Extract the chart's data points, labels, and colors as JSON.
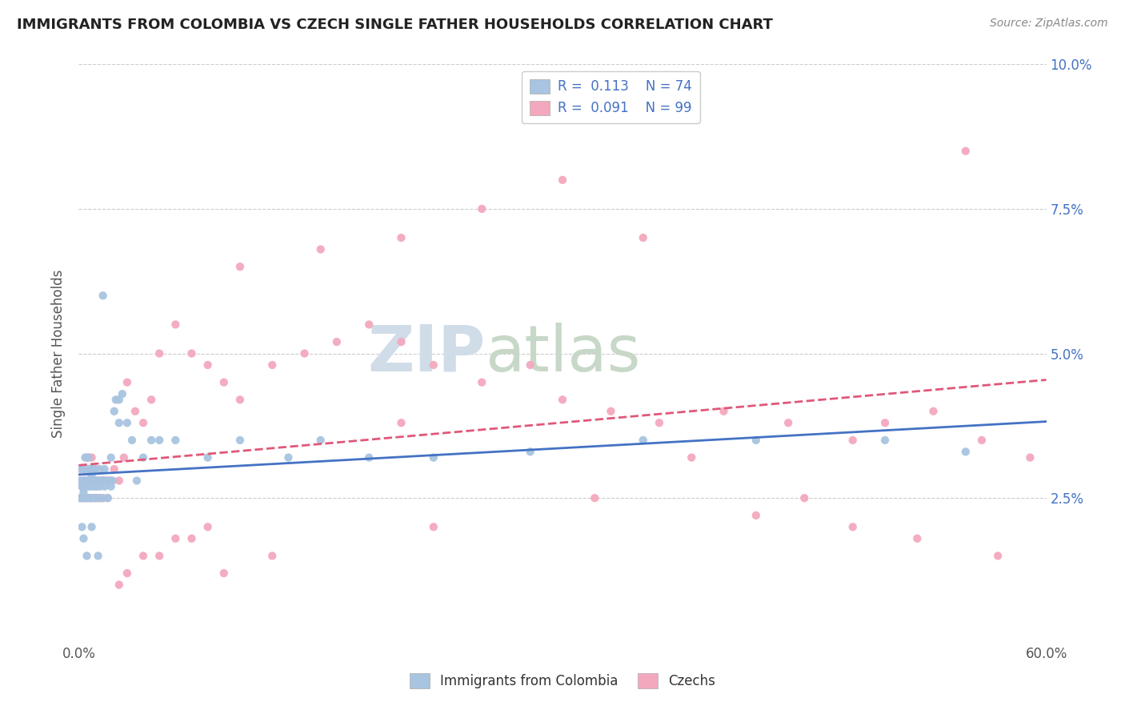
{
  "title": "IMMIGRANTS FROM COLOMBIA VS CZECH SINGLE FATHER HOUSEHOLDS CORRELATION CHART",
  "source": "Source: ZipAtlas.com",
  "ylabel": "Single Father Households",
  "xlim": [
    0.0,
    0.6
  ],
  "ylim": [
    0.0,
    0.1
  ],
  "colombia_color": "#a8c4e0",
  "czech_color": "#f4a8be",
  "colombia_line_color": "#4472c4",
  "czech_line_color": "#e05878",
  "legend_R_colombia": "0.113",
  "legend_N_colombia": "74",
  "legend_R_czech": "0.091",
  "legend_N_czech": "99",
  "watermark_zip": "ZIP",
  "watermark_atlas": "atlas",
  "colombia_x": [
    0.001,
    0.001,
    0.002,
    0.002,
    0.002,
    0.003,
    0.003,
    0.003,
    0.004,
    0.004,
    0.004,
    0.005,
    0.005,
    0.005,
    0.006,
    0.006,
    0.006,
    0.007,
    0.007,
    0.007,
    0.008,
    0.008,
    0.008,
    0.009,
    0.009,
    0.01,
    0.01,
    0.01,
    0.011,
    0.011,
    0.012,
    0.012,
    0.013,
    0.013,
    0.014,
    0.015,
    0.015,
    0.016,
    0.016,
    0.017,
    0.018,
    0.019,
    0.02,
    0.021,
    0.022,
    0.023,
    0.025,
    0.027,
    0.03,
    0.033,
    0.036,
    0.04,
    0.045,
    0.05,
    0.06,
    0.08,
    0.1,
    0.13,
    0.15,
    0.18,
    0.22,
    0.28,
    0.35,
    0.42,
    0.5,
    0.55,
    0.015,
    0.02,
    0.025,
    0.008,
    0.012,
    0.005,
    0.003,
    0.002
  ],
  "colombia_y": [
    0.028,
    0.025,
    0.027,
    0.03,
    0.025,
    0.028,
    0.026,
    0.03,
    0.025,
    0.028,
    0.032,
    0.027,
    0.03,
    0.025,
    0.028,
    0.032,
    0.027,
    0.025,
    0.028,
    0.03,
    0.027,
    0.025,
    0.029,
    0.028,
    0.03,
    0.027,
    0.025,
    0.03,
    0.028,
    0.027,
    0.025,
    0.028,
    0.027,
    0.03,
    0.028,
    0.025,
    0.028,
    0.03,
    0.027,
    0.028,
    0.025,
    0.028,
    0.027,
    0.028,
    0.04,
    0.042,
    0.038,
    0.043,
    0.038,
    0.035,
    0.028,
    0.032,
    0.035,
    0.035,
    0.035,
    0.032,
    0.035,
    0.032,
    0.035,
    0.032,
    0.032,
    0.033,
    0.035,
    0.035,
    0.035,
    0.033,
    0.06,
    0.032,
    0.042,
    0.02,
    0.015,
    0.015,
    0.018,
    0.02
  ],
  "czech_x": [
    0.001,
    0.001,
    0.001,
    0.002,
    0.002,
    0.002,
    0.003,
    0.003,
    0.003,
    0.004,
    0.004,
    0.004,
    0.005,
    0.005,
    0.005,
    0.006,
    0.006,
    0.006,
    0.007,
    0.007,
    0.007,
    0.008,
    0.008,
    0.008,
    0.009,
    0.009,
    0.01,
    0.01,
    0.01,
    0.011,
    0.011,
    0.012,
    0.012,
    0.013,
    0.013,
    0.014,
    0.015,
    0.015,
    0.016,
    0.017,
    0.018,
    0.019,
    0.02,
    0.022,
    0.025,
    0.028,
    0.03,
    0.035,
    0.04,
    0.045,
    0.05,
    0.06,
    0.07,
    0.08,
    0.09,
    0.1,
    0.12,
    0.14,
    0.16,
    0.18,
    0.2,
    0.22,
    0.25,
    0.28,
    0.3,
    0.33,
    0.36,
    0.4,
    0.44,
    0.48,
    0.5,
    0.53,
    0.56,
    0.59,
    0.25,
    0.3,
    0.35,
    0.1,
    0.15,
    0.2,
    0.08,
    0.06,
    0.04,
    0.03,
    0.025,
    0.05,
    0.07,
    0.09,
    0.12,
    0.22,
    0.32,
    0.42,
    0.52,
    0.57,
    0.45,
    0.38,
    0.48,
    0.55,
    0.2
  ],
  "czech_y": [
    0.025,
    0.028,
    0.03,
    0.025,
    0.027,
    0.03,
    0.025,
    0.028,
    0.03,
    0.025,
    0.028,
    0.025,
    0.025,
    0.028,
    0.032,
    0.025,
    0.028,
    0.032,
    0.025,
    0.028,
    0.03,
    0.025,
    0.028,
    0.032,
    0.025,
    0.028,
    0.025,
    0.028,
    0.03,
    0.025,
    0.028,
    0.025,
    0.028,
    0.025,
    0.028,
    0.025,
    0.025,
    0.028,
    0.028,
    0.028,
    0.025,
    0.028,
    0.028,
    0.03,
    0.028,
    0.032,
    0.045,
    0.04,
    0.038,
    0.042,
    0.05,
    0.055,
    0.05,
    0.048,
    0.045,
    0.042,
    0.048,
    0.05,
    0.052,
    0.055,
    0.052,
    0.048,
    0.045,
    0.048,
    0.042,
    0.04,
    0.038,
    0.04,
    0.038,
    0.035,
    0.038,
    0.04,
    0.035,
    0.032,
    0.075,
    0.08,
    0.07,
    0.065,
    0.068,
    0.07,
    0.02,
    0.018,
    0.015,
    0.012,
    0.01,
    0.015,
    0.018,
    0.012,
    0.015,
    0.02,
    0.025,
    0.022,
    0.018,
    0.015,
    0.025,
    0.032,
    0.02,
    0.085,
    0.038
  ]
}
